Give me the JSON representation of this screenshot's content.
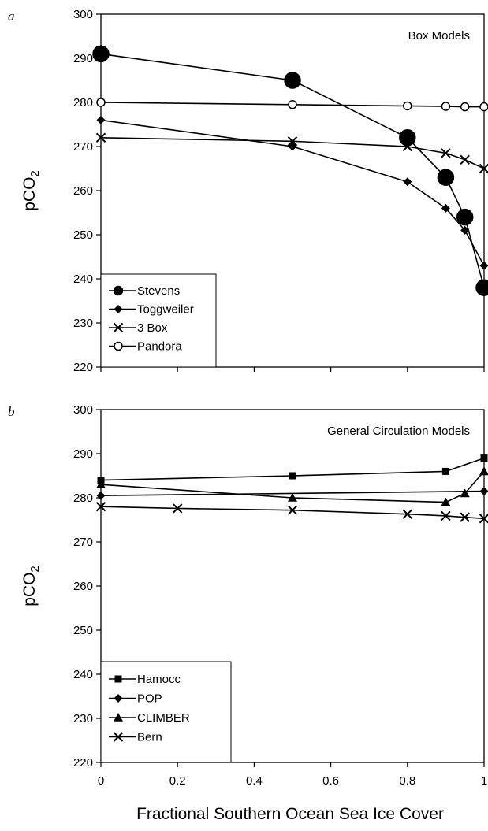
{
  "xlabel": "Fractional Southern Ocean Sea Ice Cover",
  "chart_data": [
    {
      "type": "line",
      "panel_label": "a",
      "title": "Box Models",
      "ylabel": "pCO",
      "ylabel_subscript": "2",
      "xlim": [
        0,
        1
      ],
      "ylim": [
        220,
        300
      ],
      "xticks": [
        "0",
        "0.2",
        "0.4",
        "0.6",
        "0.8",
        "1"
      ],
      "yticks": [
        "220",
        "230",
        "240",
        "250",
        "260",
        "270",
        "280",
        "290",
        "300"
      ],
      "legend_position": "bottom-left",
      "series": [
        {
          "name": "Stevens",
          "marker": "big-circle",
          "x": [
            0,
            0.5,
            0.8,
            0.9,
            0.95,
            1.0
          ],
          "y": [
            291,
            285,
            272,
            263,
            254,
            238
          ]
        },
        {
          "name": "Toggweiler",
          "marker": "diamond",
          "x": [
            0,
            0.5,
            0.8,
            0.9,
            0.95,
            1.0
          ],
          "y": [
            276,
            270,
            262,
            256,
            251,
            243
          ]
        },
        {
          "name": "3  Box",
          "marker": "x",
          "x": [
            0,
            0.5,
            0.8,
            0.9,
            0.95,
            1.0
          ],
          "y": [
            272,
            271.2,
            270,
            268.5,
            267,
            265
          ]
        },
        {
          "name": "Pandora",
          "marker": "open-circle",
          "x": [
            0,
            0.5,
            0.8,
            0.9,
            0.95,
            1.0
          ],
          "y": [
            280,
            279.5,
            279.2,
            279.1,
            279,
            279
          ]
        }
      ]
    },
    {
      "type": "line",
      "panel_label": "b",
      "title": "General Circulation Models",
      "ylabel": "pCO",
      "ylabel_subscript": "2",
      "xlim": [
        0,
        1
      ],
      "ylim": [
        220,
        300
      ],
      "xticks": [
        "0",
        "0.2",
        "0.4",
        "0.6",
        "0.8",
        "1"
      ],
      "yticks": [
        "220",
        "230",
        "240",
        "250",
        "260",
        "270",
        "280",
        "290",
        "300"
      ],
      "legend_position": "bottom-left",
      "series": [
        {
          "name": "Hamocc",
          "marker": "square",
          "x": [
            0,
            0.5,
            0.9,
            1.0
          ],
          "y": [
            284,
            285,
            286,
            289
          ]
        },
        {
          "name": "POP",
          "marker": "diamond",
          "x": [
            0,
            1.0
          ],
          "y": [
            280.5,
            281.5
          ]
        },
        {
          "name": "CLIMBER",
          "marker": "triangle",
          "x": [
            0,
            0.5,
            0.9,
            0.95,
            1.0
          ],
          "y": [
            283,
            280,
            279,
            281,
            286
          ]
        },
        {
          "name": "Bern",
          "marker": "x",
          "x": [
            0,
            0.2,
            0.5,
            0.8,
            0.9,
            0.95,
            1.0
          ],
          "y": [
            278,
            277.6,
            277.2,
            276.3,
            275.9,
            275.6,
            275.3
          ]
        }
      ]
    }
  ]
}
